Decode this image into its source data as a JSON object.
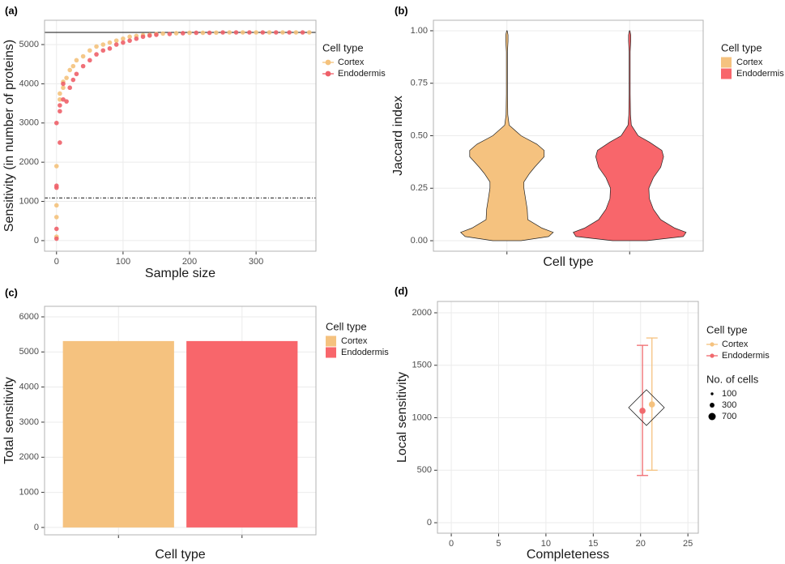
{
  "chart_data": [
    {
      "type": "scatter",
      "panel_label": "(a)",
      "x_label": "Sample size",
      "y_label": "Sensitivity (in number of proteins)",
      "xlim": [
        -18,
        390
      ],
      "xticks": [
        0,
        100,
        200,
        300
      ],
      "ylim": [
        -270,
        5620
      ],
      "yticks": [
        0,
        1000,
        2000,
        3000,
        4000,
        5000
      ],
      "grid": true,
      "legend_title": "Cell type",
      "legend_key": "point-line",
      "hlines": [
        {
          "value": 5310,
          "style": "solid"
        },
        {
          "value": 1090,
          "style": "dashed"
        }
      ],
      "series": [
        {
          "name": "Cortex",
          "color": "#f4c27c",
          "x": [
            0,
            0,
            0,
            0,
            5,
            5,
            10,
            10,
            15,
            20,
            25,
            30,
            40,
            50,
            60,
            70,
            80,
            90,
            100,
            110,
            120,
            130,
            140,
            150,
            160,
            180,
            200,
            220,
            240,
            260,
            280,
            300,
            320,
            340,
            360,
            380
          ],
          "values": [
            100,
            600,
            900,
            1900,
            3600,
            3750,
            3900,
            4050,
            4150,
            4350,
            4450,
            4600,
            4700,
            4850,
            4950,
            5000,
            5050,
            5100,
            5150,
            5200,
            5220,
            5240,
            5250,
            5270,
            5280,
            5290,
            5300,
            5300,
            5305,
            5310,
            5310,
            5310,
            5310,
            5310,
            5310,
            5310
          ]
        },
        {
          "name": "Endodermis",
          "color": "#ee6069",
          "x": [
            0,
            0,
            0,
            0,
            0,
            5,
            5,
            5,
            10,
            10,
            15,
            20,
            25,
            30,
            40,
            50,
            60,
            70,
            80,
            90,
            100,
            110,
            120,
            130,
            140,
            150,
            170,
            190,
            210,
            230,
            250,
            270,
            290,
            310,
            330,
            350,
            370
          ],
          "values": [
            50,
            300,
            1350,
            1400,
            3000,
            2500,
            3300,
            3450,
            3600,
            4000,
            3550,
            3900,
            4100,
            4250,
            4450,
            4600,
            4750,
            4850,
            4900,
            5000,
            5050,
            5100,
            5150,
            5200,
            5230,
            5250,
            5270,
            5290,
            5300,
            5300,
            5310,
            5310,
            5310,
            5310,
            5310,
            5310,
            5310
          ]
        }
      ]
    },
    {
      "type": "violin",
      "panel_label": "(b)",
      "x_label": "Cell type",
      "y_label": "Jaccard index",
      "categories": [
        null,
        null
      ],
      "ylim": [
        -0.05,
        1.05
      ],
      "yticks": [
        {
          "value": 0,
          "label": "0.00"
        },
        {
          "value": 0.25,
          "label": "0.25"
        },
        {
          "value": 0.5,
          "label": "0.50"
        },
        {
          "value": 0.75,
          "label": "0.75"
        },
        {
          "value": 1,
          "label": "1.00"
        }
      ],
      "grid": true,
      "legend_title": "Cell type",
      "legend_key": "square",
      "series": [
        {
          "name": "Cortex",
          "color": "#f5c27f",
          "y": [
            0,
            0.02,
            0.04,
            0.06,
            0.1,
            0.15,
            0.2,
            0.25,
            0.28,
            0.32,
            0.35,
            0.4,
            0.43,
            0.46,
            0.5,
            0.55,
            0.6,
            0.7,
            0.8,
            0.9,
            0.95,
            0.98,
            1.0
          ],
          "density": [
            0.25,
            0.74,
            0.82,
            0.62,
            0.37,
            0.36,
            0.33,
            0.3,
            0.3,
            0.4,
            0.49,
            0.66,
            0.66,
            0.53,
            0.25,
            0.04,
            0.015,
            0.01,
            0.01,
            0.01,
            0.02,
            0.02,
            0.005
          ]
        },
        {
          "name": "Endodermis",
          "color": "#f8666b",
          "y": [
            0,
            0.02,
            0.04,
            0.06,
            0.1,
            0.15,
            0.2,
            0.25,
            0.3,
            0.35,
            0.4,
            0.43,
            0.47,
            0.5,
            0.55,
            0.6,
            0.7,
            0.8,
            0.9,
            0.95,
            0.98,
            1.0
          ],
          "density": [
            0.3,
            0.95,
            1.0,
            0.8,
            0.55,
            0.42,
            0.35,
            0.34,
            0.42,
            0.55,
            0.6,
            0.57,
            0.35,
            0.15,
            0.03,
            0.015,
            0.01,
            0.01,
            0.01,
            0.02,
            0.02,
            0.005
          ]
        }
      ]
    },
    {
      "type": "bar",
      "panel_label": "(c)",
      "x_label": "Cell type",
      "y_label": "Total sensitivity",
      "categories": [
        null,
        null
      ],
      "ylim": [
        -210,
        6300
      ],
      "yticks": [
        0,
        1000,
        2000,
        3000,
        4000,
        5000,
        6000
      ],
      "grid": true,
      "legend_title": "Cell type",
      "legend_key": "square",
      "series": [
        {
          "name": "Cortex",
          "color": "#f5c27f",
          "values": [
            5310,
            null
          ]
        },
        {
          "name": "Endodermis",
          "color": "#f8666b",
          "values": [
            null,
            5310
          ]
        }
      ]
    },
    {
      "type": "scatter",
      "panel_label": "(d)",
      "x_label": "Completeness",
      "y_label": "Local sensitivity",
      "xlim": [
        -1.46,
        26.1
      ],
      "xticks": [
        0,
        5,
        10,
        15,
        20,
        25
      ],
      "ylim": [
        -100,
        2108
      ],
      "yticks": [
        0,
        500,
        1000,
        1500,
        2000
      ],
      "grid": true,
      "legend_title": "Cell type",
      "legend_key": "point-line",
      "size_legend": {
        "title": "No. of cells",
        "values": [
          100,
          300,
          700
        ]
      },
      "series": [
        {
          "name": "Cortex",
          "color": "#f5c27f",
          "x": [
            21.2
          ],
          "values": [
            1127
          ],
          "error_low": [
            500
          ],
          "error_high": [
            1760
          ],
          "size": [
            500
          ]
        },
        {
          "name": "Endodermis",
          "color": "#f06a6e",
          "x": [
            20.2
          ],
          "values": [
            1066
          ],
          "error_low": [
            450
          ],
          "error_high": [
            1690
          ],
          "size": [
            500
          ]
        }
      ]
    }
  ]
}
